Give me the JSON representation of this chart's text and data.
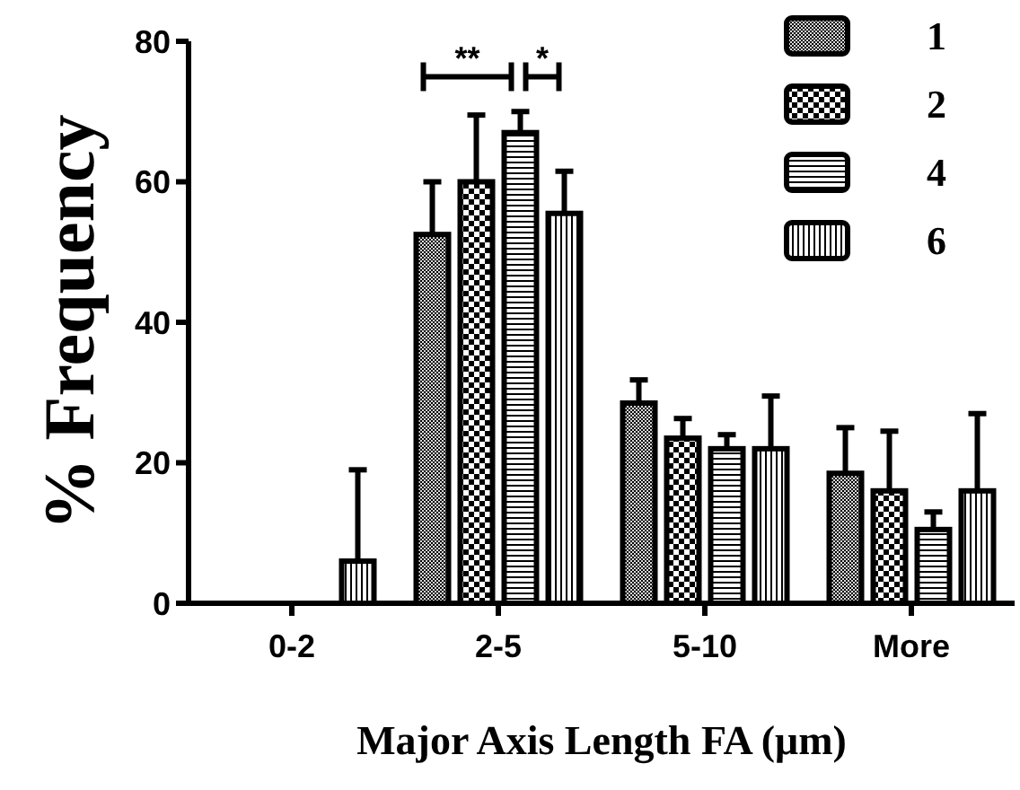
{
  "chart_data": {
    "type": "bar",
    "xlabel": "Major Axis Length FA (μm)",
    "ylabel": "% Frequency",
    "categories": [
      "0-2",
      "2-5",
      "5-10",
      "More"
    ],
    "series": [
      {
        "name": "1",
        "color": "#000000",
        "values": [
          0,
          52.5,
          28.5,
          18.5
        ],
        "errors": [
          null,
          [
            52.5,
            60
          ],
          [
            28.5,
            31.8
          ],
          [
            18.5,
            25
          ]
        ]
      },
      {
        "name": "2",
        "color": "#000000",
        "values": [
          0,
          60,
          23.5,
          16
        ],
        "errors": [
          null,
          [
            60,
            69.5
          ],
          [
            23.5,
            26.3
          ],
          [
            16,
            24.5
          ]
        ]
      },
      {
        "name": "4",
        "color": "#000000",
        "values": [
          0,
          67,
          22,
          10.5
        ],
        "errors": [
          null,
          [
            67,
            70
          ],
          [
            22,
            24
          ],
          [
            10.5,
            13
          ]
        ]
      },
      {
        "name": "6",
        "color": "#000000",
        "values": [
          6,
          55.5,
          22,
          16
        ],
        "errors": [
          [
            6,
            19
          ],
          [
            55.5,
            61.5
          ],
          [
            22,
            29.5
          ],
          [
            16,
            27
          ]
        ]
      }
    ],
    "ylim": [
      0,
      80
    ],
    "yticks": [
      0,
      20,
      40,
      60,
      80
    ],
    "annotations": [
      "**",
      "*"
    ],
    "legend": "top right",
    "grid": false
  }
}
